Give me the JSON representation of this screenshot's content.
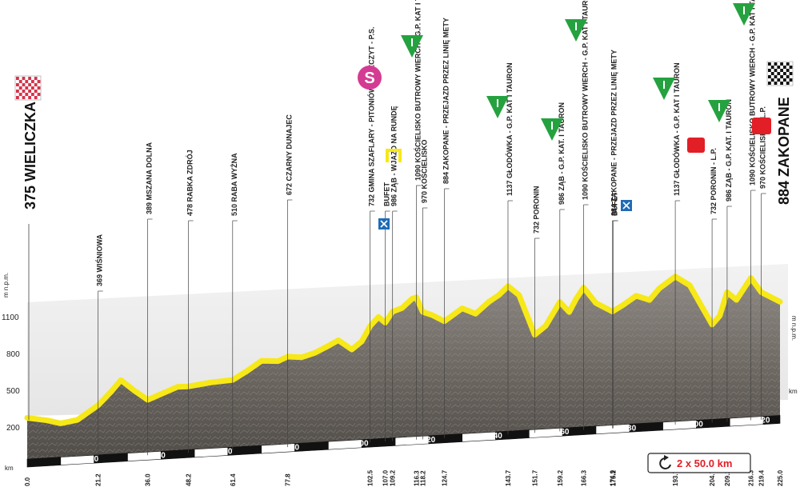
{
  "start": {
    "name": "375 WIELICZKA",
    "flag_icon": "checkered-red-flag-icon"
  },
  "finish": {
    "name": "884 ZAKOPANE",
    "flag_icon": "checkered-black-flag-icon"
  },
  "axis": {
    "y_unit_left": "m n.p.m.",
    "y_unit_right": "m n.p.m.",
    "km_label": "km",
    "y_ticks": [
      "1100",
      "800",
      "500",
      "200"
    ],
    "km_ticks": [
      "20",
      "40",
      "60",
      "80",
      "100",
      "120",
      "140",
      "160",
      "180",
      "200",
      "220"
    ]
  },
  "laps": {
    "text": "2 x 50.0 km",
    "icon": "loop-arrow-icon"
  },
  "icons": {
    "sprint": "S",
    "feed_zone": "feed-zone-icon",
    "kom": "mountain-prize-triangle-icon",
    "bonus": "bonus-sprint-square-icon"
  },
  "checkpoints": [
    {
      "km": "0.0",
      "label": ""
    },
    {
      "km": "21.2",
      "label": "369 WIŚNIOWA"
    },
    {
      "km": "36.0",
      "label": "389 MSZANA DOLNA"
    },
    {
      "km": "48.2",
      "label": "478 RABKA ZDRÓJ"
    },
    {
      "km": "61.4",
      "label": "510 RABA WYŻNA"
    },
    {
      "km": "77.8",
      "label": "672 CZARNY DUNAJEC"
    },
    {
      "km": "102.5",
      "label": "732 GMINA SZAFLARY - PITONIÓWKA SZCZYT - P.S."
    },
    {
      "km": "107.0",
      "label": "BUFET"
    },
    {
      "km": "109.2",
      "label": "986 ZĄB - WJAZD NA RUNDĘ"
    },
    {
      "km": "116.3",
      "label": "1090 KOŚCIELISKO BUTROWY WIERCH - G.P. KAT I TAURON"
    },
    {
      "km": "118.2",
      "label": "970 KOŚCIELISKO"
    },
    {
      "km": "124.7",
      "label": "884 ZAKOPANE - PRZEJAZD PRZEZ LINIĘ METY"
    },
    {
      "km": "143.7",
      "label": "1137 GŁODÓWKA - G.P. KAT I TAURON"
    },
    {
      "km": "151.7",
      "label": "732 PORONIN"
    },
    {
      "km": "159.2",
      "label": "986 ZĄB - G.P. KAT. I TAURON"
    },
    {
      "km": "166.3",
      "label": "1090 KOŚCIELISKO BUTROWY WIERCH - G.P. KAT I TAURON"
    },
    {
      "km": "174.9",
      "label": "884 ZAKOPANE - PRZEJAZD PRZEZ LINIĘ METY"
    },
    {
      "km": "175.2",
      "label": "BUFET"
    },
    {
      "km": "193.7",
      "label": "1137 GŁODÓWKA - G.P. KAT I TAURON"
    },
    {
      "km": "204.7",
      "label": "732 PORONIN - L.P."
    },
    {
      "km": "209.2",
      "label": "986 ZĄB - G.P. KAT. I TAURON"
    },
    {
      "km": "216.3",
      "label": "1090 KOŚCIELISKO BUTROWY WIERCH - G.P. KAT I TAURON"
    },
    {
      "km": "219.4",
      "label": "970 KOŚCIELISKO - L.P."
    },
    {
      "km": "225.0",
      "label": ""
    }
  ],
  "colors": {
    "road": "#f7e817",
    "terrain": "#6f6a65",
    "kom_green": "#25a23f",
    "sprint_pink": "#d43b92",
    "bonus_red": "#e21e26",
    "feed_blue": "#1f6bb7"
  }
}
